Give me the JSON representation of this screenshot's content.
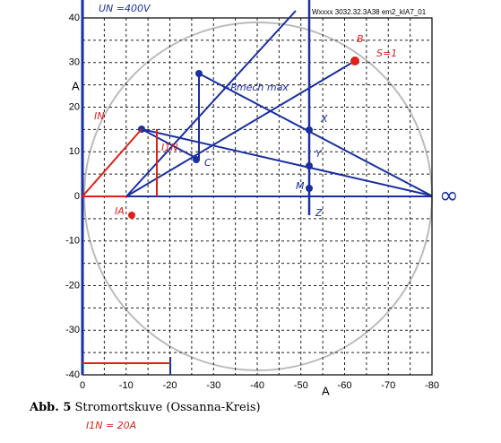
{
  "header": {
    "code": "Wxxxx   3032.32.3A38    em2_kIA7_01"
  },
  "figure": {
    "y_axis_unit": "A",
    "x_axis_unit": "A",
    "y_tick_labels": [
      "40",
      "30",
      "20",
      "10",
      "0",
      "-10",
      "-20",
      "-30",
      "-40"
    ],
    "x_tick_labels": [
      "0",
      "-10",
      "-20",
      "-30",
      "-40",
      "-50",
      "-60",
      "-70",
      "-80"
    ],
    "annotations": {
      "voltage": "UN =400V",
      "point_b": "B",
      "slip": "S=1",
      "power": "~Pmech max",
      "current_n": "IN",
      "current_1n": "I1N",
      "point_c": "C",
      "current_a": "IA",
      "point_m": "M",
      "point_z": "Z",
      "point_x": "X",
      "point_y": "Y",
      "infinity": "∞",
      "scale": "I1N = 20A"
    }
  },
  "caption": {
    "label": "Abb. 5",
    "text": "Stromortskuve (Ossanna-Kreis)"
  }
}
